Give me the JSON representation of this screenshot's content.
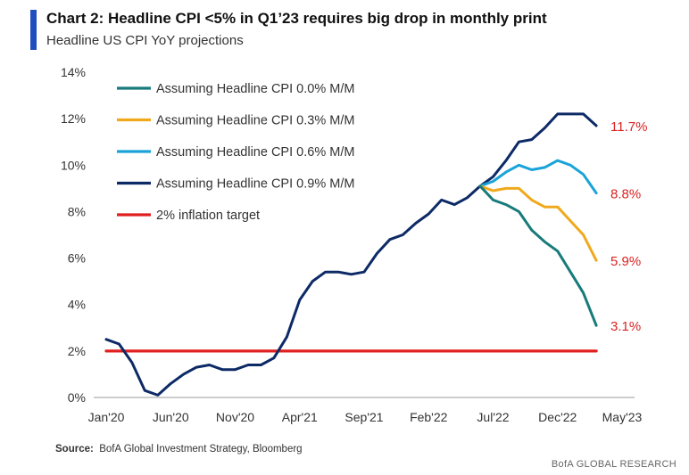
{
  "header": {
    "title": "Chart 2: Headline CPI <5% in Q1’23  requires big drop in monthly print",
    "subtitle": "Headline US CPI YoY projections",
    "accent_color": "#1f4fbf"
  },
  "footer": {
    "source_label": "Source:",
    "source_text": "BofA Global Investment Strategy, Bloomberg",
    "credit": "BofA GLOBAL RESEARCH"
  },
  "chart_data": {
    "type": "line",
    "ylim": [
      0,
      14
    ],
    "y_ticks": [
      0,
      2,
      4,
      6,
      8,
      10,
      12,
      14
    ],
    "y_tick_labels": [
      "0%",
      "2%",
      "4%",
      "6%",
      "8%",
      "10%",
      "12%",
      "14%"
    ],
    "x_range": [
      "2020-01",
      "2023-05"
    ],
    "x_ticks": [
      "2020-01",
      "2020-06",
      "2020-11",
      "2021-04",
      "2021-09",
      "2022-02",
      "2022-07",
      "2022-12",
      "2023-05"
    ],
    "x_tick_labels": [
      "Jan'20",
      "Jun'20",
      "Nov'20",
      "Apr'21",
      "Sep'21",
      "Feb'22",
      "Jul'22",
      "Dec'22",
      "May'23"
    ],
    "grid": false,
    "legend_position": "top-left",
    "series": [
      {
        "name": "Assuming Headline CPI 0.9% M/M",
        "color": "#0d2a66",
        "end_label": "11.7%",
        "points": [
          [
            "2020-01",
            2.5
          ],
          [
            "2020-02",
            2.3
          ],
          [
            "2020-03",
            1.5
          ],
          [
            "2020-04",
            0.3
          ],
          [
            "2020-05",
            0.1
          ],
          [
            "2020-06",
            0.6
          ],
          [
            "2020-07",
            1.0
          ],
          [
            "2020-08",
            1.3
          ],
          [
            "2020-09",
            1.4
          ],
          [
            "2020-10",
            1.2
          ],
          [
            "2020-11",
            1.2
          ],
          [
            "2020-12",
            1.4
          ],
          [
            "2021-01",
            1.4
          ],
          [
            "2021-02",
            1.7
          ],
          [
            "2021-03",
            2.6
          ],
          [
            "2021-04",
            4.2
          ],
          [
            "2021-05",
            5.0
          ],
          [
            "2021-06",
            5.4
          ],
          [
            "2021-07",
            5.4
          ],
          [
            "2021-08",
            5.3
          ],
          [
            "2021-09",
            5.4
          ],
          [
            "2021-10",
            6.2
          ],
          [
            "2021-11",
            6.8
          ],
          [
            "2021-12",
            7.0
          ],
          [
            "2022-01",
            7.5
          ],
          [
            "2022-02",
            7.9
          ],
          [
            "2022-03",
            8.5
          ],
          [
            "2022-04",
            8.3
          ],
          [
            "2022-05",
            8.6
          ],
          [
            "2022-06",
            9.1
          ],
          [
            "2022-07",
            9.5
          ],
          [
            "2022-08",
            10.2
          ],
          [
            "2022-09",
            11.0
          ],
          [
            "2022-10",
            11.1
          ],
          [
            "2022-11",
            11.6
          ],
          [
            "2022-12",
            12.2
          ],
          [
            "2023-01",
            12.2
          ],
          [
            "2023-02",
            12.2
          ],
          [
            "2023-03",
            11.7
          ]
        ]
      },
      {
        "name": "Assuming Headline CPI 0.6% M/M",
        "color": "#1aa3d9",
        "end_label": "8.8%",
        "points": [
          [
            "2022-06",
            9.1
          ],
          [
            "2022-07",
            9.3
          ],
          [
            "2022-08",
            9.7
          ],
          [
            "2022-09",
            10.0
          ],
          [
            "2022-10",
            9.8
          ],
          [
            "2022-11",
            9.9
          ],
          [
            "2022-12",
            10.2
          ],
          [
            "2023-01",
            10.0
          ],
          [
            "2023-02",
            9.6
          ],
          [
            "2023-03",
            8.8
          ]
        ]
      },
      {
        "name": "Assuming Headline CPI 0.3% M/M",
        "color": "#f0a91c",
        "end_label": "5.9%",
        "points": [
          [
            "2022-06",
            9.1
          ],
          [
            "2022-07",
            8.9
          ],
          [
            "2022-08",
            9.0
          ],
          [
            "2022-09",
            9.0
          ],
          [
            "2022-10",
            8.5
          ],
          [
            "2022-11",
            8.2
          ],
          [
            "2022-12",
            8.2
          ],
          [
            "2023-01",
            7.6
          ],
          [
            "2023-02",
            7.0
          ],
          [
            "2023-03",
            5.9
          ]
        ]
      },
      {
        "name": "Assuming Headline CPI 0.0% M/M",
        "color": "#187a7a",
        "end_label": "3.1%",
        "points": [
          [
            "2022-06",
            9.1
          ],
          [
            "2022-07",
            8.5
          ],
          [
            "2022-08",
            8.3
          ],
          [
            "2022-09",
            8.0
          ],
          [
            "2022-10",
            7.2
          ],
          [
            "2022-11",
            6.7
          ],
          [
            "2022-12",
            6.3
          ],
          [
            "2023-01",
            5.4
          ],
          [
            "2023-02",
            4.5
          ],
          [
            "2023-03",
            3.1
          ]
        ]
      },
      {
        "name": "2% inflation target",
        "color": "#e0201f",
        "end_label": "",
        "points": [
          [
            "2020-01",
            2.0
          ],
          [
            "2023-03",
            2.0
          ]
        ]
      }
    ],
    "legend_order": [
      3,
      2,
      1,
      0,
      4
    ],
    "end_label_color": "#d92323"
  }
}
